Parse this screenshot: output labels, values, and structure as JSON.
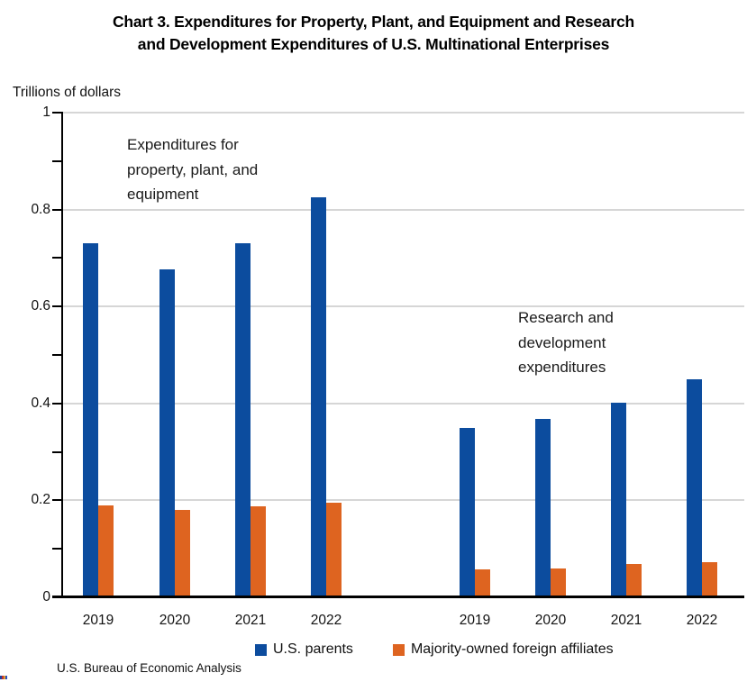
{
  "title": {
    "line1": "Chart 3. Expenditures for Property, Plant, and Equipment and Research",
    "line2": "and Development Expenditures of U.S. Multinational Enterprises"
  },
  "footer": {
    "source": "U.S. Bureau of Economic Analysis"
  },
  "colors": {
    "background": "#FFFFFF",
    "axis": "#000000",
    "gridline": "#D6D6D6",
    "blue_series": "#0C4C9E",
    "orange_series": "#DE6420"
  },
  "artifact_colors": [
    "#1B3FA0",
    "#C03030",
    "#E0A030",
    "#2A52C0"
  ],
  "chart_data": {
    "type": "bar",
    "title": "Chart 3. Expenditures for Property, Plant, and Equipment and Research and Development Expenditures of U.S. Multinational Enterprises",
    "ylabel": "Trillions of dollars",
    "xlabel": "",
    "ylim": [
      0,
      1
    ],
    "ytick_values": [
      1,
      0.8,
      0.6,
      0.4,
      0.2,
      0
    ],
    "ytick_labels": [
      "1",
      "0.8",
      "0.6",
      "0.4",
      "0.2",
      "0"
    ],
    "minor_tick_step": 0.1,
    "grid": "horizontal gridlines every 0.2, minor axis ticks every 0.1",
    "legend_position": "bottom",
    "series": [
      {
        "name": "U.S. parents",
        "color": "#0C4C9E"
      },
      {
        "name": "Majority-owned foreign affiliates",
        "color": "#DE6420"
      }
    ],
    "groups": [
      {
        "id": "ppe",
        "annotation": [
          "Expenditures for",
          "property, plant, and",
          "equipment"
        ],
        "categories": [
          "2019",
          "2020",
          "2021",
          "2022"
        ],
        "series": [
          {
            "name": "U.S. parents",
            "values": [
              0.731,
              0.676,
              0.73,
              0.826
            ]
          },
          {
            "name": "Majority-owned foreign affiliates",
            "values": [
              0.19,
              0.18,
              0.187,
              0.196
            ]
          }
        ]
      },
      {
        "id": "rnd",
        "annotation": [
          "Research and",
          "development",
          "expenditures"
        ],
        "categories": [
          "2019",
          "2020",
          "2021",
          "2022"
        ],
        "series": [
          {
            "name": "U.S. parents",
            "values": [
              0.349,
              0.368,
              0.402,
              0.45
            ]
          },
          {
            "name": "Majority-owned foreign affiliates",
            "values": [
              0.057,
              0.06,
              0.068,
              0.072
            ]
          }
        ]
      }
    ]
  }
}
